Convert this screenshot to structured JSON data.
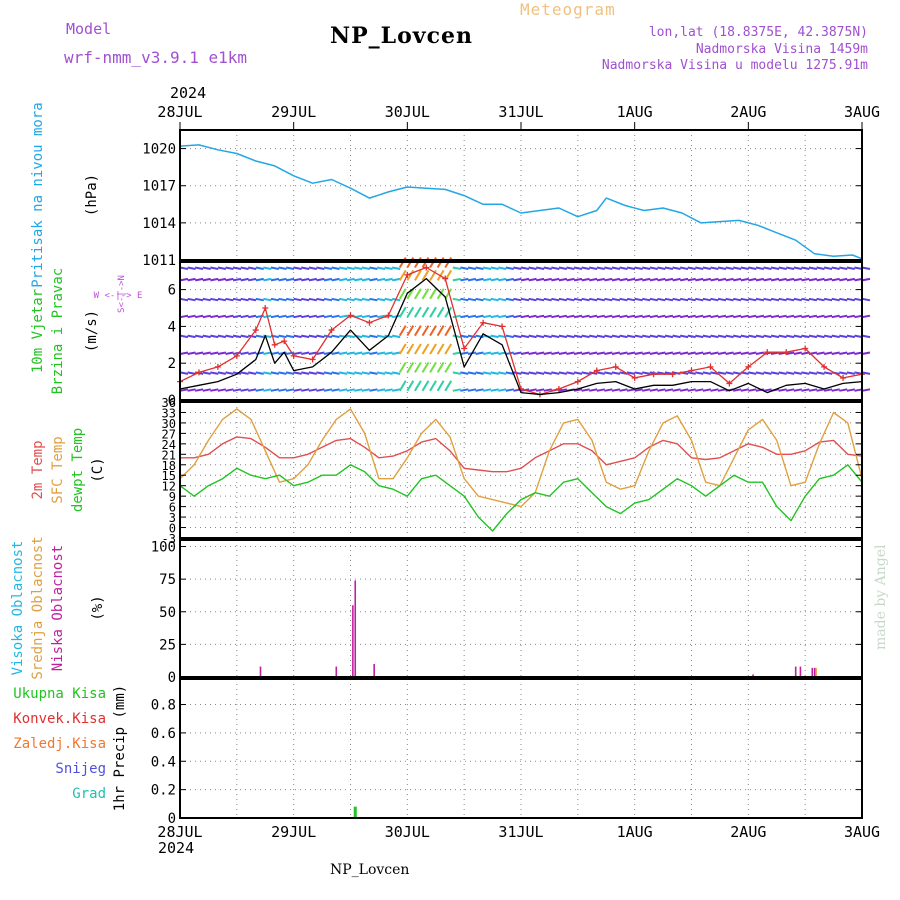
{
  "header": {
    "model_label": "Model",
    "model_name": "wrf-nmm_v3.9.1  e1km",
    "station": "NP_Lovcen",
    "product": "Meteogram",
    "coords": "lon,lat (18.8375E, 42.3875N)",
    "altitude": "Nadmorska Visina 1459m",
    "model_altitude": "Nadmorska Visina u modelu 1275.91m",
    "year_top": "2024",
    "year_bottom": "2024",
    "footer_station": "NP_Lovcen",
    "credit": "made by Angel"
  },
  "colors": {
    "pressure": "#22a7e6",
    "wind_label": "#22c322",
    "temp2m": "#e05050",
    "sfc_temp": "#e0a040",
    "dewpt": "#22c322",
    "cloud_high": "#22b8e6",
    "cloud_mid": "#e0a040",
    "cloud_low": "#c020a0",
    "precip_total": "#22c322",
    "precip_conv": "#e03030",
    "precip_frz": "#f07830",
    "snow": "#5050e0",
    "hail": "#20c0b0",
    "wind_dir": "#c050e0",
    "credit": "#c8d8c8"
  },
  "chart_data": [
    {
      "type": "line",
      "panel": "pressure",
      "ylabel": [
        "Pritisak na nivou mora",
        "(hPa)"
      ],
      "ylim": [
        1011,
        1021.5
      ],
      "yticks": [
        1011,
        1014,
        1017,
        1020
      ],
      "x_hours": [
        0,
        4,
        8,
        12,
        16,
        20,
        24,
        28,
        32,
        36,
        40,
        44,
        48,
        52,
        56,
        60,
        64,
        68,
        72,
        76,
        80,
        84,
        88,
        90,
        94,
        98,
        102,
        106,
        110,
        114,
        118,
        122,
        126,
        130,
        134,
        138,
        142,
        144
      ],
      "values": [
        1020.2,
        1020.3,
        1019.9,
        1019.6,
        1019.0,
        1018.6,
        1017.8,
        1017.2,
        1017.5,
        1016.8,
        1016.0,
        1016.5,
        1016.9,
        1016.8,
        1016.7,
        1016.2,
        1015.5,
        1015.5,
        1014.8,
        1015.0,
        1015.2,
        1014.5,
        1015.0,
        1016.0,
        1015.4,
        1015.0,
        1015.2,
        1014.8,
        1014.0,
        1014.1,
        1014.2,
        1013.8,
        1013.2,
        1012.6,
        1011.5,
        1011.3,
        1011.4,
        1011.1
      ]
    },
    {
      "type": "line",
      "panel": "wind",
      "ylabel": [
        "10m Vjetar",
        "Brzina i Pravac",
        "(m/s)"
      ],
      "compass": "W <-|-> E",
      "compass_ns": "S<-|->N",
      "ylim": [
        0,
        7.5
      ],
      "yticks": [
        0,
        2,
        4,
        6
      ],
      "series": [
        {
          "line": "speed",
          "x_hours": [
            0,
            4,
            8,
            12,
            16,
            18,
            20,
            22,
            24,
            28,
            32,
            36,
            40,
            44,
            48,
            52,
            56,
            60,
            64,
            68,
            72,
            76,
            80,
            84,
            88,
            92,
            96,
            100,
            104,
            108,
            112,
            116,
            120,
            124,
            128,
            132,
            136,
            140,
            144
          ],
          "values": [
            0.6,
            0.8,
            1.0,
            1.4,
            2.2,
            3.5,
            2.0,
            2.6,
            1.6,
            1.8,
            2.6,
            3.8,
            2.7,
            3.5,
            5.8,
            6.6,
            5.6,
            1.8,
            3.6,
            3.0,
            0.4,
            0.3,
            0.4,
            0.6,
            0.9,
            1.0,
            0.6,
            0.8,
            0.8,
            1.0,
            1.0,
            0.5,
            0.9,
            0.4,
            0.8,
            0.9,
            0.6,
            0.9,
            1.0
          ]
        },
        {
          "line": "gust",
          "x_hours": [
            0,
            4,
            8,
            12,
            16,
            18,
            20,
            22,
            24,
            28,
            32,
            36,
            40,
            44,
            48,
            52,
            56,
            60,
            64,
            68,
            72,
            76,
            80,
            84,
            88,
            92,
            96,
            100,
            104,
            108,
            112,
            116,
            120,
            124,
            128,
            132,
            136,
            140,
            144
          ],
          "values": [
            1.0,
            1.5,
            1.8,
            2.4,
            3.8,
            5.0,
            3.0,
            3.2,
            2.4,
            2.2,
            3.8,
            4.6,
            4.2,
            4.6,
            6.8,
            7.2,
            6.6,
            2.8,
            4.2,
            4.0,
            0.6,
            0.3,
            0.6,
            1.0,
            1.6,
            1.8,
            1.2,
            1.4,
            1.4,
            1.6,
            1.8,
            0.9,
            1.8,
            2.6,
            2.6,
            2.8,
            1.8,
            1.2,
            1.4
          ]
        }
      ]
    },
    {
      "type": "line",
      "panel": "temperature",
      "ylabel": [
        "2m Temp",
        "SFC Temp",
        "dewpt Temp",
        "(C)"
      ],
      "ylim": [
        -3,
        36
      ],
      "yticks": [
        -3,
        0,
        3,
        6,
        9,
        12,
        15,
        18,
        21,
        24,
        27,
        30,
        33,
        36
      ],
      "series": [
        {
          "name": "2m Temp",
          "x_hours": [
            0,
            3,
            6,
            9,
            12,
            15,
            18,
            21,
            24,
            27,
            30,
            33,
            36,
            39,
            42,
            45,
            48,
            51,
            54,
            57,
            60,
            63,
            66,
            69,
            72,
            75,
            78,
            81,
            84,
            87,
            90,
            93,
            96,
            99,
            102,
            105,
            108,
            111,
            114,
            117,
            120,
            123,
            126,
            129,
            132,
            135,
            138,
            141,
            144
          ],
          "values": [
            20,
            20,
            21,
            24,
            26,
            25.5,
            23,
            20,
            20,
            21,
            23,
            25,
            25.5,
            23,
            20,
            20.5,
            22,
            24.5,
            25.5,
            22,
            17,
            16.5,
            16,
            16,
            17,
            20,
            22,
            24,
            24,
            22,
            18,
            19,
            20,
            23,
            25,
            24,
            20,
            19.5,
            20,
            22,
            24,
            23,
            21,
            21,
            22,
            24.5,
            25,
            21,
            20.5
          ]
        },
        {
          "name": "SFC Temp",
          "x_hours": [
            0,
            3,
            6,
            9,
            12,
            15,
            18,
            21,
            24,
            27,
            30,
            33,
            36,
            39,
            42,
            45,
            48,
            51,
            54,
            57,
            60,
            63,
            66,
            69,
            72,
            75,
            78,
            81,
            84,
            87,
            90,
            93,
            96,
            99,
            102,
            105,
            108,
            111,
            114,
            117,
            120,
            123,
            126,
            129,
            132,
            135,
            138,
            141,
            144
          ],
          "values": [
            14,
            18,
            25,
            31,
            34,
            31,
            22,
            13,
            14,
            18,
            25,
            31,
            34,
            27,
            14,
            14,
            20,
            27,
            31,
            26,
            14,
            9,
            8,
            7,
            6,
            10,
            22,
            30,
            31,
            25,
            13,
            11,
            12,
            22,
            30,
            32,
            25,
            13,
            12,
            20,
            28,
            31,
            25,
            12,
            13,
            24,
            33,
            30,
            14
          ]
        },
        {
          "name": "dewpt Temp",
          "x_hours": [
            0,
            3,
            6,
            9,
            12,
            15,
            18,
            21,
            24,
            27,
            30,
            33,
            36,
            39,
            42,
            45,
            48,
            51,
            54,
            57,
            60,
            63,
            66,
            69,
            72,
            75,
            78,
            81,
            84,
            87,
            90,
            93,
            96,
            99,
            102,
            105,
            108,
            111,
            114,
            117,
            120,
            123,
            126,
            129,
            132,
            135,
            138,
            141,
            144
          ],
          "values": [
            12,
            9,
            12,
            14,
            17,
            15,
            14,
            15,
            12,
            13,
            15,
            15,
            18,
            16,
            12,
            11,
            9,
            14,
            15,
            12,
            9,
            3,
            -1,
            4,
            8,
            10,
            9,
            13,
            14,
            10,
            6,
            4,
            7,
            8,
            11,
            14,
            12,
            9,
            12,
            15,
            13,
            13,
            6,
            2,
            9,
            14,
            15,
            18,
            13
          ]
        }
      ]
    },
    {
      "type": "bar",
      "panel": "clouds",
      "ylabel": [
        "Visoka Oblacnost",
        "Srednja Oblacnost",
        "Niska Oblacnost",
        "(%)"
      ],
      "ylim": [
        0,
        105
      ],
      "yticks": [
        0,
        25,
        50,
        75,
        100
      ],
      "series": [
        {
          "name": "Niska Oblacnost",
          "x_hours": [
            17,
            33,
            36.5,
            37,
            41,
            121,
            130,
            131,
            133.5,
            134
          ],
          "values": [
            8,
            8,
            55,
            74,
            10,
            2,
            8,
            8,
            7,
            7
          ]
        },
        {
          "name": "Srednja Oblacnost",
          "x_hours": [
            134.3
          ],
          "values": [
            7
          ]
        },
        {
          "name": "Visoka Oblacnost",
          "x_hours": [],
          "values": []
        }
      ]
    },
    {
      "type": "bar",
      "panel": "precip",
      "ylabel": [
        "1hr Precip (mm)"
      ],
      "legend": [
        "Ukupna Kisa",
        "Konvek.Kisa",
        "Zaledj.Kisa",
        "Snijeg",
        "Grad"
      ],
      "ylim": [
        0,
        0.98
      ],
      "yticks": [
        0,
        0.2,
        0.4,
        0.6,
        0.8
      ],
      "series": [
        {
          "name": "Ukupna Kisa",
          "x_hours": [
            37
          ],
          "values": [
            0.08
          ]
        }
      ]
    }
  ],
  "time_axis": {
    "hours_per_label": 24,
    "labels": [
      "28JUL",
      "29JUL",
      "30JUL",
      "31JUL",
      "1AUG",
      "2AUG",
      "3AUG"
    ]
  }
}
